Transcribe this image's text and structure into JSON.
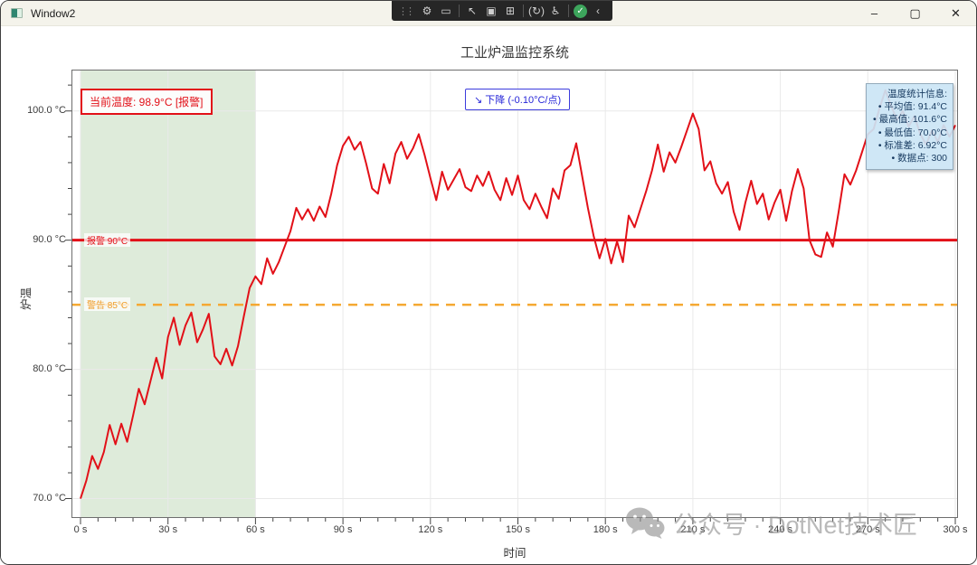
{
  "window": {
    "title": "Window2",
    "controls": {
      "minimize": "–",
      "maximize": "▢",
      "close": "✕"
    }
  },
  "debug_toolbar": {
    "icons": [
      {
        "name": "grip-handle",
        "glyph": "⋮⋮",
        "kind": "grip"
      },
      {
        "name": "live-visual-tree-icon",
        "glyph": "⚙",
        "kind": "icon"
      },
      {
        "name": "live-property-explorer-icon",
        "glyph": "▭",
        "kind": "icon"
      },
      {
        "name": "separator",
        "glyph": "",
        "kind": "sep"
      },
      {
        "name": "select-element-icon",
        "glyph": "↖",
        "kind": "icon"
      },
      {
        "name": "display-adorners-icon",
        "glyph": "▣",
        "kind": "icon"
      },
      {
        "name": "track-focused-element-icon",
        "glyph": "⊞",
        "kind": "icon"
      },
      {
        "name": "separator",
        "glyph": "",
        "kind": "sep"
      },
      {
        "name": "hot-reload-icon",
        "glyph": "(↻)",
        "kind": "icon"
      },
      {
        "name": "accessibility-checker-icon",
        "glyph": "♿",
        "kind": "icon"
      },
      {
        "name": "separator",
        "glyph": "",
        "kind": "sep"
      },
      {
        "name": "hot-reload-status-icon",
        "glyph": "✓",
        "kind": "check"
      },
      {
        "name": "collapse-toolbar-icon",
        "glyph": "‹",
        "kind": "icon"
      }
    ]
  },
  "chart": {
    "annotations": {
      "current": "当前温度: 98.9°C [报警]",
      "trend": "↘ 下降 (-0.10°C/点)",
      "stats": {
        "title": "温度统计信息:",
        "items": [
          "• 平均值: 91.4°C",
          "• 最高值: 101.6°C",
          "• 最低值: 70.0°C",
          "• 标准差: 6.92°C",
          "• 数据点: 300"
        ]
      }
    }
  },
  "chart_data": {
    "type": "line",
    "title": "工业炉温监控系统",
    "xlabel": "时间",
    "ylabel": "炉温",
    "xlim": [
      0,
      300
    ],
    "ylim": [
      68.5,
      103.2
    ],
    "x_ticks": {
      "values": [
        0,
        30,
        60,
        90,
        120,
        150,
        180,
        210,
        240,
        270,
        300
      ],
      "labels": [
        "0 s",
        "30 s",
        "60 s",
        "90 s",
        "120 s",
        "150 s",
        "180 s",
        "210 s",
        "240 s",
        "270 s",
        "300 s"
      ],
      "minor_step": 6
    },
    "y_ticks": {
      "values": [
        70,
        80,
        90,
        100
      ],
      "labels": [
        "70.0 °C",
        "80.0 °C",
        "90.0 °C",
        "100.0 °C"
      ],
      "minor_step": 2
    },
    "grid": true,
    "highlight_region": {
      "x0": 0,
      "x1": 60,
      "color": "#deebda"
    },
    "thresholds": [
      {
        "name": "warning",
        "label": "警告 85°C",
        "value": 85,
        "color": "#f5a832",
        "style": "dashed"
      },
      {
        "name": "alarm",
        "label": "报警 90°C",
        "value": 90,
        "color": "#e21018",
        "style": "solid"
      }
    ],
    "x": [
      0,
      2,
      4,
      6,
      8,
      10,
      12,
      14,
      16,
      18,
      20,
      22,
      24,
      26,
      28,
      30,
      32,
      34,
      36,
      38,
      40,
      42,
      44,
      46,
      48,
      50,
      52,
      54,
      56,
      58,
      60,
      62,
      64,
      66,
      68,
      70,
      72,
      74,
      76,
      78,
      80,
      82,
      84,
      86,
      88,
      90,
      92,
      94,
      96,
      98,
      100,
      102,
      104,
      106,
      108,
      110,
      112,
      114,
      116,
      118,
      120,
      122,
      124,
      126,
      128,
      130,
      132,
      134,
      136,
      138,
      140,
      142,
      144,
      146,
      148,
      150,
      152,
      154,
      156,
      158,
      160,
      162,
      164,
      166,
      168,
      170,
      172,
      174,
      176,
      178,
      180,
      182,
      184,
      186,
      188,
      190,
      192,
      194,
      196,
      198,
      200,
      202,
      204,
      206,
      208,
      210,
      212,
      214,
      216,
      218,
      220,
      222,
      224,
      226,
      228,
      230,
      232,
      234,
      236,
      238,
      240,
      242,
      244,
      246,
      248,
      250,
      252,
      254,
      256,
      258,
      260,
      262,
      264,
      266,
      268,
      270,
      272,
      274,
      276,
      278,
      280,
      282,
      284,
      286,
      288,
      290,
      292,
      294,
      296,
      298,
      300
    ],
    "series": [
      {
        "name": "炉温",
        "color": "#e21018",
        "values": [
          70.0,
          71.4,
          73.3,
          72.3,
          73.6,
          75.7,
          74.2,
          75.8,
          74.4,
          76.4,
          78.5,
          77.3,
          79.1,
          80.9,
          79.3,
          82.5,
          84.0,
          81.9,
          83.4,
          84.4,
          82.1,
          83.1,
          84.3,
          81.0,
          80.4,
          81.6,
          80.3,
          81.8,
          84.1,
          86.3,
          87.2,
          86.6,
          88.6,
          87.4,
          88.3,
          89.5,
          90.7,
          92.5,
          91.6,
          92.4,
          91.5,
          92.6,
          91.8,
          93.6,
          95.8,
          97.3,
          98.0,
          97.0,
          97.6,
          95.9,
          94.0,
          93.6,
          95.9,
          94.4,
          96.7,
          97.6,
          96.3,
          97.1,
          98.2,
          96.6,
          94.8,
          93.1,
          95.3,
          93.9,
          94.7,
          95.5,
          94.1,
          93.8,
          95.0,
          94.2,
          95.3,
          93.9,
          93.1,
          94.8,
          93.5,
          95.0,
          93.1,
          92.4,
          93.6,
          92.6,
          91.7,
          94.0,
          93.2,
          95.4,
          95.8,
          97.5,
          95.0,
          92.5,
          90.3,
          88.6,
          90.1,
          88.2,
          89.9,
          88.3,
          91.9,
          91.0,
          92.4,
          93.8,
          95.4,
          97.4,
          95.3,
          96.8,
          96.0,
          97.2,
          98.5,
          99.8,
          98.6,
          95.4,
          96.1,
          94.4,
          93.6,
          94.5,
          92.2,
          90.8,
          92.9,
          94.6,
          92.8,
          93.6,
          91.6,
          92.9,
          93.9,
          91.5,
          93.8,
          95.5,
          94.0,
          90.0,
          88.9,
          88.7,
          90.6,
          89.5,
          92.2,
          95.1,
          94.3,
          95.4,
          96.8,
          98.2,
          98.6,
          100.2,
          101.6,
          100.4,
          99.3,
          100.0,
          98.8,
          99.6,
          98.2,
          97.4,
          98.5,
          97.6,
          98.9,
          98.0,
          98.9
        ]
      }
    ],
    "stats": {
      "mean": 91.4,
      "max": 101.6,
      "min": 70.0,
      "std": 6.92,
      "points": 300
    }
  },
  "watermark": {
    "text": "公众号 · DotNet技术匠"
  }
}
